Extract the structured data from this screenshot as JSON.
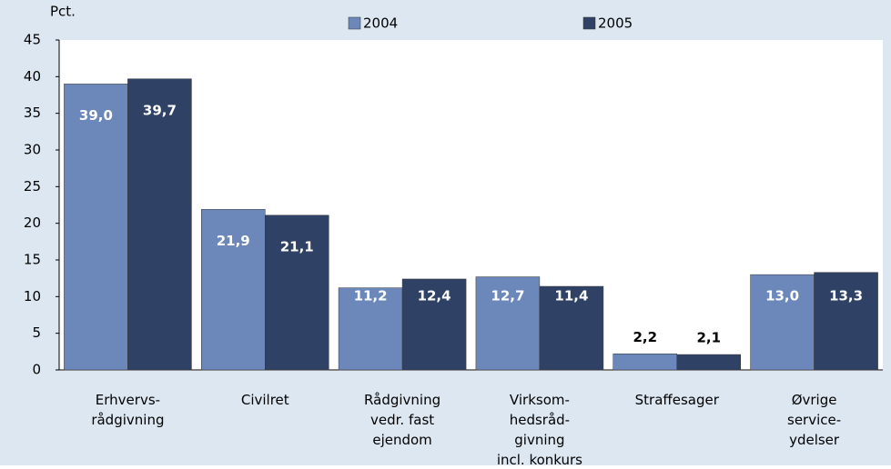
{
  "chart_data": {
    "type": "bar",
    "y_label": "Pct.",
    "categories": [
      [
        "Erhvervs-",
        "rådgivning"
      ],
      [
        "Civilret"
      ],
      [
        "Rådgivning",
        "vedr. fast",
        "ejendom"
      ],
      [
        "Virksom-",
        "hedsråd-",
        "givning",
        "incl. konkurs"
      ],
      [
        "Straffesager"
      ],
      [
        "Øvrige",
        "service-",
        "ydelser"
      ]
    ],
    "series": [
      {
        "name": "2004",
        "color": "#6c87b9",
        "values": [
          39.0,
          21.9,
          11.2,
          12.7,
          2.2,
          13.0
        ],
        "value_labels": [
          "39,0",
          "21,9",
          "11,2",
          "12,7",
          "2,2",
          "13,0"
        ]
      },
      {
        "name": "2005",
        "color": "#2f4266",
        "values": [
          39.7,
          21.1,
          12.4,
          11.4,
          2.1,
          13.3
        ],
        "value_labels": [
          "39,7",
          "21,1",
          "12,4",
          "11,4",
          "2,1",
          "13,3"
        ]
      }
    ],
    "ylim": [
      0,
      45
    ],
    "yticks": [
      0,
      5,
      10,
      15,
      20,
      25,
      30,
      35,
      40,
      45
    ],
    "legend": "top"
  }
}
